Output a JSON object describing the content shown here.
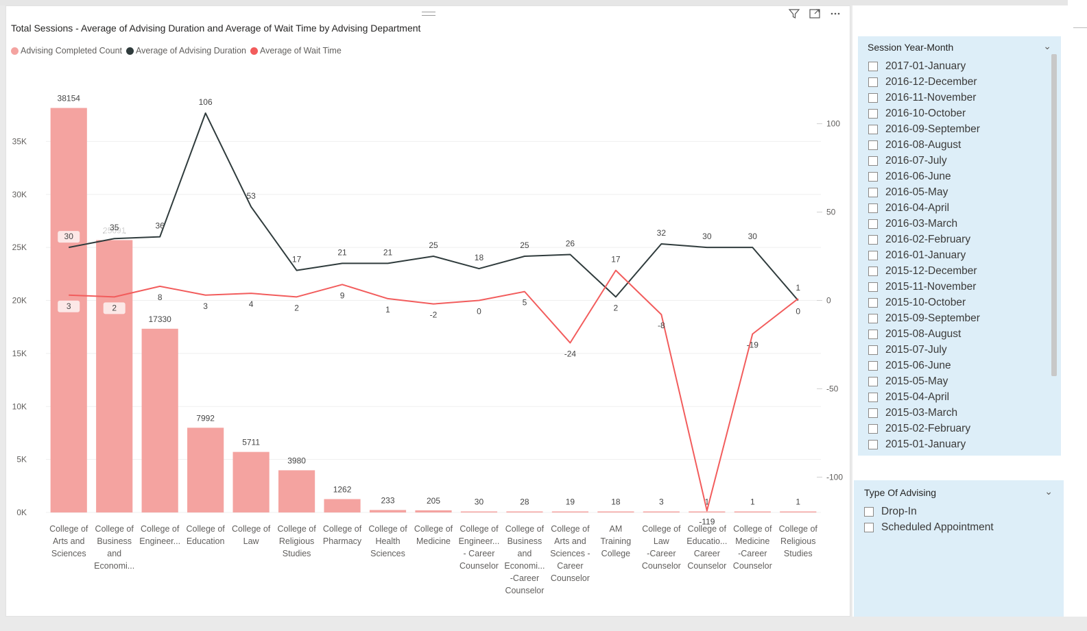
{
  "visual": {
    "title": "Total Sessions -  Average of Advising Duration and Average of Wait Time by Advising Department",
    "icons": [
      "filter-icon",
      "focus-mode-icon",
      "more-options-icon"
    ]
  },
  "legend": [
    {
      "label": "Advising Completed Count",
      "color": "#f4a3a0"
    },
    {
      "label": "Average of Advising Duration",
      "color": "#2f3b3c"
    },
    {
      "label": "Average of Wait Time",
      "color": "#f25c5c"
    }
  ],
  "chart_data": {
    "type": "bar",
    "categories": [
      [
        "College of",
        "Arts and",
        "Sciences"
      ],
      [
        "College of",
        "Business",
        "and",
        "Economi..."
      ],
      [
        "College of",
        "Engineer..."
      ],
      [
        "College of",
        "Education"
      ],
      [
        "College of",
        "Law"
      ],
      [
        "College of",
        "Religious",
        "Studies"
      ],
      [
        "College of",
        "Pharmacy"
      ],
      [
        "College of",
        "Health",
        "Sciences"
      ],
      [
        "College of",
        "Medicine"
      ],
      [
        "College of",
        "Engineer...",
        "- Career",
        "Counselor"
      ],
      [
        "College of",
        "Business",
        "and",
        "Economi...",
        "-Career",
        "Counselor"
      ],
      [
        "College of",
        "Arts and",
        "Sciences -",
        "Career",
        "Counselor"
      ],
      [
        "AM",
        "Training",
        "College"
      ],
      [
        "College of",
        "Law",
        "-Career",
        "Counselor"
      ],
      [
        "College of",
        "Educatio...",
        "Career",
        "Counselor"
      ],
      [
        "College of",
        "Medicine",
        "-Career",
        "Counselor"
      ],
      [
        "College of",
        "Religious",
        "Studies"
      ]
    ],
    "series": [
      {
        "name": "Advising Completed Count",
        "axis": "left",
        "kind": "bar",
        "values": [
          38154,
          25691,
          17330,
          7992,
          5711,
          3980,
          1262,
          233,
          205,
          30,
          28,
          19,
          18,
          3,
          1,
          1,
          1
        ]
      },
      {
        "name": "Average of Advising Duration",
        "axis": "right",
        "kind": "line",
        "values": [
          30,
          35,
          36,
          106,
          53,
          17,
          21,
          21,
          25,
          18,
          25,
          26,
          2,
          32,
          30,
          30,
          0
        ]
      },
      {
        "name": "Average of Wait Time",
        "axis": "right",
        "kind": "line",
        "values": [
          3,
          2,
          8,
          3,
          4,
          2,
          9,
          1,
          -2,
          0,
          5,
          -24,
          17,
          -8,
          -119,
          -19,
          1
        ]
      }
    ],
    "left_axis": {
      "min": 0,
      "max": 40000,
      "ticks": [
        0,
        5000,
        10000,
        15000,
        20000,
        25000,
        30000,
        35000
      ],
      "tick_labels": [
        "0K",
        "5K",
        "10K",
        "15K",
        "20K",
        "25K",
        "30K",
        "35K"
      ]
    },
    "right_axis": {
      "min": -120,
      "max": 120,
      "ticks": [
        -100,
        -50,
        0,
        50,
        100
      ],
      "tick_labels": [
        "-100",
        "-50",
        "0",
        "50",
        "100"
      ]
    },
    "grid": true,
    "legend_position": "top-left"
  },
  "slicer_month": {
    "title": "Session Year-Month",
    "items": [
      "2017-01-January",
      "2016-12-December",
      "2016-11-November",
      "2016-10-October",
      "2016-09-September",
      "2016-08-August",
      "2016-07-July",
      "2016-06-June",
      "2016-05-May",
      "2016-04-April",
      "2016-03-March",
      "2016-02-February",
      "2016-01-January",
      "2015-12-December",
      "2015-11-November",
      "2015-10-October",
      "2015-09-September",
      "2015-08-August",
      "2015-07-July",
      "2015-06-June",
      "2015-05-May",
      "2015-04-April",
      "2015-03-March",
      "2015-02-February",
      "2015-01-January"
    ]
  },
  "slicer_type": {
    "title": "Type Of Advising",
    "items": [
      "Drop-In",
      "Scheduled Appointment"
    ]
  },
  "colors": {
    "bar": "#f4a3a0",
    "duration_line": "#2f3b3c",
    "wait_line": "#f25c5c",
    "slicer_bg": "#ddeef8"
  }
}
